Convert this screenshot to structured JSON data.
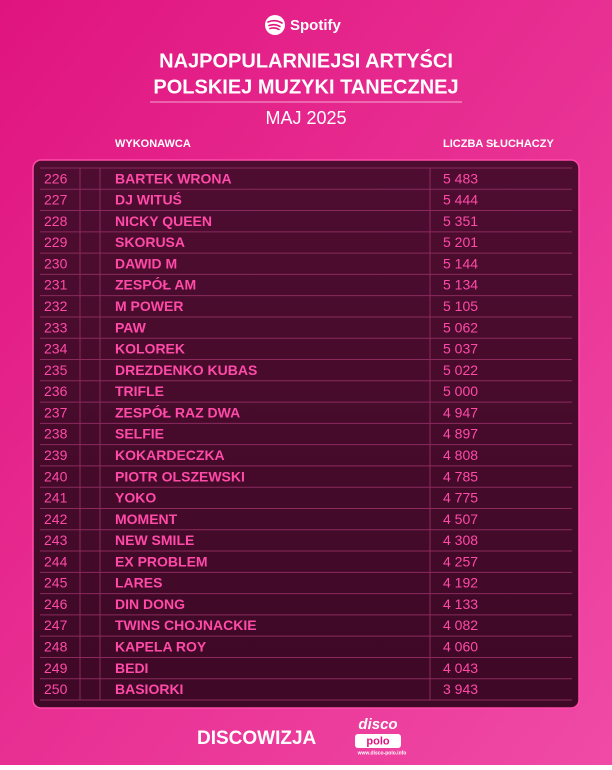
{
  "header": {
    "brand": "Spotify",
    "title_lines": [
      "NAJPOPULARNIEJSI ARTYŚCI",
      "POLSKIEJ MUZYKI TANECZNEJ"
    ],
    "subtitle": "MAJ 2025"
  },
  "table": {
    "columns": [
      "WYKONAWCA",
      "LICZBA SŁUCHACZY"
    ],
    "rows": [
      [
        226,
        "BARTEK WRONA",
        "5 483"
      ],
      [
        227,
        "DJ WITUŚ",
        "5 444"
      ],
      [
        228,
        "NICKY QUEEN",
        "5 351"
      ],
      [
        229,
        "SKORUSA",
        "5 201"
      ],
      [
        230,
        "DAWID M",
        "5 144"
      ],
      [
        231,
        "ZESPÓŁ AM",
        "5 134"
      ],
      [
        232,
        "M POWER",
        "5 105"
      ],
      [
        233,
        "PAW",
        "5 062"
      ],
      [
        234,
        "KOLOREK",
        "5 037"
      ],
      [
        235,
        "DREZDENKO KUBAS",
        "5 022"
      ],
      [
        236,
        "TRIFLE",
        "5 000"
      ],
      [
        237,
        "ZESPÓŁ RAZ DWA",
        "4 947"
      ],
      [
        238,
        "SELFIE",
        "4 897"
      ],
      [
        239,
        "KOKARDECZKA",
        "4 808"
      ],
      [
        240,
        "PIOTR OLSZEWSKI",
        "4 785"
      ],
      [
        241,
        "YOKO",
        "4 775"
      ],
      [
        242,
        "MOMENT",
        "4 507"
      ],
      [
        243,
        "NEW SMILE",
        "4 308"
      ],
      [
        244,
        "EX PROBLEM",
        "4 257"
      ],
      [
        245,
        "LARES",
        "4 192"
      ],
      [
        246,
        "DIN DONG",
        "4 133"
      ],
      [
        247,
        "TWINS CHOJNACKIE",
        "4 082"
      ],
      [
        248,
        "KAPELA ROY",
        "4 060"
      ],
      [
        249,
        "BEDI",
        "4 043"
      ],
      [
        250,
        "BASIORKI",
        "3 943"
      ]
    ]
  },
  "footer": {
    "brand": "DISCOWIZJA",
    "logo_top": "disco",
    "logo_bottom": "polo",
    "logo_url": "www.disco-polo.info"
  }
}
